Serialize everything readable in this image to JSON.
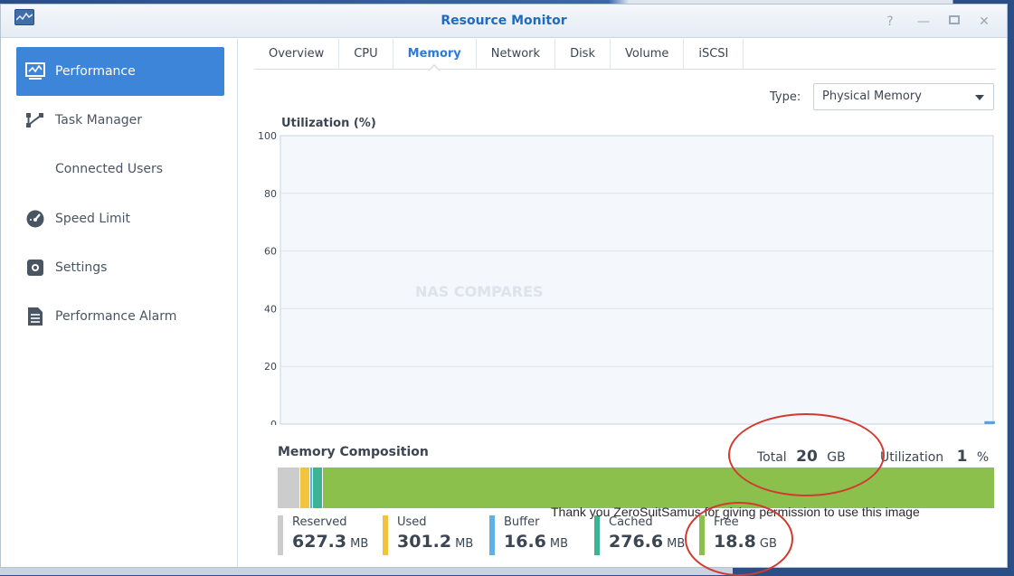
{
  "window": {
    "title": "Resource Monitor"
  },
  "sidebar": {
    "items": [
      {
        "label": "Performance",
        "icon": "performance-icon",
        "active": true
      },
      {
        "label": "Task Manager",
        "icon": "task-manager-icon"
      },
      {
        "label": "Connected Users",
        "icon": ""
      },
      {
        "label": "Speed Limit",
        "icon": "speed-limit-icon"
      },
      {
        "label": "Settings",
        "icon": "settings-gear-icon"
      },
      {
        "label": "Performance Alarm",
        "icon": "alarm-list-icon"
      }
    ]
  },
  "tabs": [
    "Overview",
    "CPU",
    "Memory",
    "Network",
    "Disk",
    "Volume",
    "iSCSI"
  ],
  "active_tab": "Memory",
  "type_filter": {
    "label": "Type:",
    "value": "Physical Memory"
  },
  "chart": {
    "title": "Utilization (%)",
    "y_ticks": [
      "100",
      "80",
      "60",
      "40",
      "20",
      "0"
    ]
  },
  "chart_data": {
    "type": "area",
    "title": "Utilization (%)",
    "ylim": [
      0,
      100
    ],
    "y_ticks": [
      0,
      20,
      40,
      60,
      80,
      100
    ],
    "series": [
      {
        "values": [
          0,
          0,
          0,
          0,
          0,
          0,
          0,
          0,
          1,
          1
        ]
      }
    ]
  },
  "watermark": "NAS COMPARES",
  "composition": {
    "title": "Memory Composition",
    "total_label": "Total",
    "total_value": "20",
    "total_unit": "GB",
    "util_label": "Utilization",
    "util_value": "1",
    "util_unit": "%",
    "segments": [
      {
        "name": "Reserved",
        "value": "627.3",
        "unit": "MB",
        "color": "#cccccc",
        "fraction": 0.031
      },
      {
        "name": "Used",
        "value": "301.2",
        "unit": "MB",
        "color": "#f2c33c",
        "fraction": 0.015
      },
      {
        "name": "Buffer",
        "value": "16.6",
        "unit": "MB",
        "color": "#5fb0e5",
        "fraction": 0.003
      },
      {
        "name": "Cached",
        "value": "276.6",
        "unit": "MB",
        "color": "#3cb494",
        "fraction": 0.014
      },
      {
        "name": "Free",
        "value": "18.8",
        "unit": "GB",
        "color": "#8cc04c",
        "fraction": 0.937
      }
    ]
  },
  "caption": "Thank you ZeroSuitSamus for giving permission to use this image",
  "colors": {
    "accent": "#3d85d9",
    "title": "#1f6bc1",
    "annotation": "#d23a2f"
  }
}
